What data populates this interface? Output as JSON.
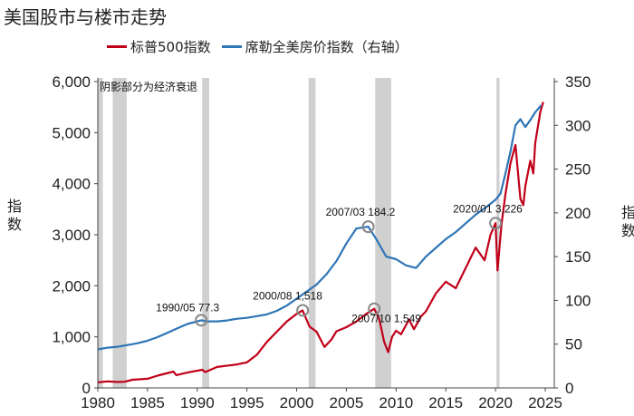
{
  "title": "美国股市与楼市走势",
  "legend": {
    "sp500": "标普500指数",
    "case_shiller": "席勒全美房价指数（右轴）"
  },
  "chart_data": {
    "type": "line",
    "title": "美国股市与楼市走势",
    "xlabel": "",
    "ylabel_left": "指数",
    "ylabel_right": "指数",
    "x_range": [
      1980,
      2025
    ],
    "ylim_left": [
      0,
      6000
    ],
    "ylim_right": [
      0,
      350
    ],
    "x_ticks": [
      "1980",
      "1985",
      "1990",
      "1995",
      "2000",
      "2005",
      "2010",
      "2015",
      "2020",
      "2025"
    ],
    "y_ticks_left": [
      "0",
      "1,000",
      "2,000",
      "3,000",
      "4,000",
      "5,000",
      "6,000"
    ],
    "y_ticks_right": [
      "0",
      "50",
      "100",
      "150",
      "200",
      "250",
      "300",
      "350"
    ],
    "recession_note": "阴影部分为经济衰退",
    "recessions": [
      [
        1980.0,
        1980.5
      ],
      [
        1981.5,
        1982.9
      ],
      [
        1990.5,
        1991.2
      ],
      [
        2001.2,
        2001.9
      ],
      [
        2007.9,
        2009.5
      ],
      [
        2020.1,
        2020.4
      ]
    ],
    "series": [
      {
        "name": "标普500指数",
        "axis": "left",
        "color": "#c00018",
        "points": [
          [
            1980.0,
            108
          ],
          [
            1981.0,
            128
          ],
          [
            1982.0,
            115
          ],
          [
            1982.7,
            120
          ],
          [
            1983.5,
            160
          ],
          [
            1985.0,
            180
          ],
          [
            1986.0,
            240
          ],
          [
            1987.6,
            320
          ],
          [
            1987.9,
            250
          ],
          [
            1989.0,
            300
          ],
          [
            1990.5,
            355
          ],
          [
            1990.8,
            310
          ],
          [
            1992.0,
            410
          ],
          [
            1994.0,
            460
          ],
          [
            1995.0,
            500
          ],
          [
            1996.0,
            650
          ],
          [
            1997.0,
            900
          ],
          [
            1998.0,
            1100
          ],
          [
            1999.0,
            1300
          ],
          [
            2000.0,
            1450
          ],
          [
            2000.6,
            1518
          ],
          [
            2001.3,
            1200
          ],
          [
            2002.0,
            1100
          ],
          [
            2002.8,
            800
          ],
          [
            2003.5,
            950
          ],
          [
            2004.0,
            1110
          ],
          [
            2005.0,
            1190
          ],
          [
            2006.0,
            1300
          ],
          [
            2007.0,
            1450
          ],
          [
            2007.8,
            1549
          ],
          [
            2008.3,
            1350
          ],
          [
            2008.8,
            900
          ],
          [
            2009.2,
            700
          ],
          [
            2009.6,
            1000
          ],
          [
            2010.0,
            1120
          ],
          [
            2010.5,
            1050
          ],
          [
            2011.3,
            1340
          ],
          [
            2011.8,
            1150
          ],
          [
            2012.5,
            1400
          ],
          [
            2013.0,
            1500
          ],
          [
            2014.0,
            1850
          ],
          [
            2015.0,
            2080
          ],
          [
            2016.0,
            1950
          ],
          [
            2016.5,
            2150
          ],
          [
            2017.0,
            2350
          ],
          [
            2018.0,
            2750
          ],
          [
            2018.9,
            2500
          ],
          [
            2019.5,
            3000
          ],
          [
            2020.0,
            3226
          ],
          [
            2020.2,
            2300
          ],
          [
            2020.6,
            3200
          ],
          [
            2021.0,
            3800
          ],
          [
            2021.5,
            4400
          ],
          [
            2022.0,
            4760
          ],
          [
            2022.5,
            3700
          ],
          [
            2022.8,
            3580
          ],
          [
            2023.0,
            3950
          ],
          [
            2023.5,
            4450
          ],
          [
            2023.8,
            4200
          ],
          [
            2024.0,
            4800
          ],
          [
            2024.5,
            5400
          ],
          [
            2024.8,
            5600
          ]
        ]
      },
      {
        "name": "席勒全美房价指数（右轴）",
        "axis": "right",
        "color": "#2e75b6",
        "points": [
          [
            1980.0,
            44
          ],
          [
            1981.0,
            46
          ],
          [
            1982.0,
            47
          ],
          [
            1983.0,
            49
          ],
          [
            1984.0,
            51
          ],
          [
            1985.0,
            54
          ],
          [
            1986.0,
            58
          ],
          [
            1987.0,
            63
          ],
          [
            1988.0,
            68
          ],
          [
            1989.0,
            73
          ],
          [
            1990.4,
            77.3
          ],
          [
            1991.0,
            76
          ],
          [
            1992.0,
            76
          ],
          [
            1993.0,
            77
          ],
          [
            1994.0,
            79
          ],
          [
            1995.0,
            80
          ],
          [
            1996.0,
            82
          ],
          [
            1997.0,
            84
          ],
          [
            1998.0,
            88
          ],
          [
            1999.0,
            94
          ],
          [
            2000.0,
            102
          ],
          [
            2001.0,
            110
          ],
          [
            2002.0,
            118
          ],
          [
            2003.0,
            130
          ],
          [
            2004.0,
            145
          ],
          [
            2005.0,
            165
          ],
          [
            2006.0,
            182
          ],
          [
            2007.2,
            184.2
          ],
          [
            2008.0,
            170
          ],
          [
            2009.0,
            150
          ],
          [
            2010.0,
            147
          ],
          [
            2011.0,
            140
          ],
          [
            2012.0,
            137
          ],
          [
            2013.0,
            150
          ],
          [
            2014.0,
            160
          ],
          [
            2015.0,
            170
          ],
          [
            2016.0,
            178
          ],
          [
            2017.0,
            188
          ],
          [
            2018.0,
            198
          ],
          [
            2019.0,
            206
          ],
          [
            2020.0,
            215
          ],
          [
            2020.5,
            222
          ],
          [
            2021.0,
            245
          ],
          [
            2021.5,
            270
          ],
          [
            2022.0,
            300
          ],
          [
            2022.5,
            307
          ],
          [
            2023.0,
            298
          ],
          [
            2023.5,
            306
          ],
          [
            2024.0,
            315
          ],
          [
            2024.6,
            323
          ]
        ]
      }
    ],
    "annotations": [
      {
        "label": "1990/05  77.3",
        "x": 1990.4,
        "y": 77.3,
        "axis": "right"
      },
      {
        "label": "2000/08  1,518",
        "x": 2000.6,
        "y": 1518,
        "axis": "left"
      },
      {
        "label": "2007/03  184.2",
        "x": 2007.2,
        "y": 184.2,
        "axis": "right"
      },
      {
        "label": "2007/10  1,549",
        "x": 2007.8,
        "y": 1549,
        "axis": "left"
      },
      {
        "label": "2020/01  3,226",
        "x": 2020.0,
        "y": 3226,
        "axis": "left"
      }
    ]
  }
}
